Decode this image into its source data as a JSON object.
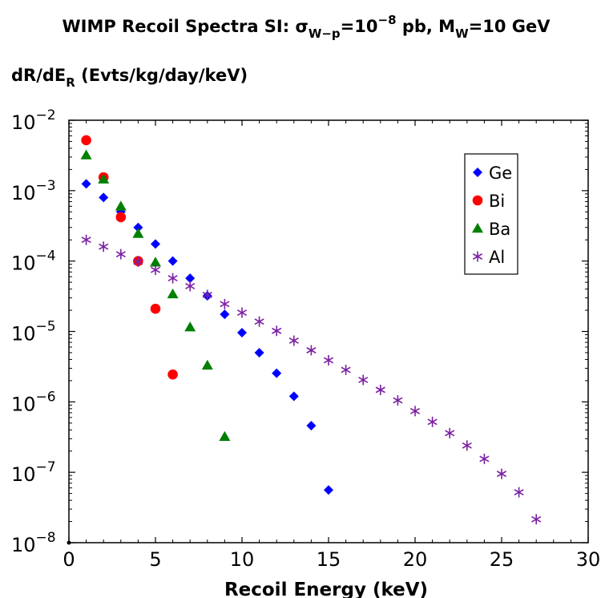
{
  "chart_data": {
    "type": "scatter",
    "title": {
      "prefix": "WIMP Recoil Spectra SI: σ",
      "sigma_sub": "W−p",
      "mid": "=10",
      "exp": "−8",
      "unit": " pb, M",
      "mass_sub": "W",
      "suffix": "=10 GeV"
    },
    "ylabel": {
      "main": "dR/dE",
      "sub": "R",
      "rest": " (Evts/kg/day/keV)"
    },
    "xlabel": "Recoil Energy (keV)",
    "x_scale": "linear",
    "y_scale": "log",
    "xlim": [
      0,
      30
    ],
    "ylim": [
      1e-08,
      0.01
    ],
    "x_ticks": [
      "0",
      "5",
      "10",
      "15",
      "20",
      "25",
      "30"
    ],
    "y_ticks": [
      {
        "base": "10",
        "exp": "−2",
        "value": 0.01
      },
      {
        "base": "10",
        "exp": "−3",
        "value": 0.001
      },
      {
        "base": "10",
        "exp": "−4",
        "value": 0.0001
      },
      {
        "base": "10",
        "exp": "−5",
        "value": 1e-05
      },
      {
        "base": "10",
        "exp": "−6",
        "value": 1e-06
      },
      {
        "base": "10",
        "exp": "−7",
        "value": 1e-07
      },
      {
        "base": "10",
        "exp": "−8",
        "value": 1e-08
      }
    ],
    "grid": false,
    "legend_position": "top-right",
    "series": [
      {
        "name": "Ge",
        "color": "#0000ff",
        "marker": "diamond",
        "x": [
          1,
          2,
          3,
          4,
          5,
          6,
          7,
          8,
          9,
          10,
          11,
          12,
          13,
          14,
          15
        ],
        "y": [
          0.00125,
          0.0008,
          0.0005,
          0.0003,
          0.000175,
          0.0001,
          5.7e-05,
          3.2e-05,
          1.75e-05,
          9.6e-06,
          5e-06,
          2.55e-06,
          1.2e-06,
          4.6e-07,
          5.6e-08
        ]
      },
      {
        "name": "Bi",
        "color": "#ff0000",
        "marker": "circle",
        "x": [
          1,
          2,
          3,
          4,
          5,
          6
        ],
        "y": [
          0.0052,
          0.00155,
          0.00042,
          0.0001,
          2.1e-05,
          2.45e-06
        ]
      },
      {
        "name": "Ba",
        "color": "#008000",
        "marker": "triangle",
        "x": [
          1,
          2,
          3,
          4,
          5,
          6,
          7,
          8,
          9
        ],
        "y": [
          0.0032,
          0.00145,
          0.0006,
          0.000245,
          9.6e-05,
          3.4e-05,
          1.15e-05,
          3.3e-06,
          3.2e-07
        ]
      },
      {
        "name": "Al",
        "color": "#7b1fa2",
        "marker": "asterisk",
        "x": [
          1,
          2,
          3,
          4,
          5,
          6,
          7,
          8,
          9,
          10,
          11,
          12,
          13,
          14,
          15,
          16,
          17,
          18,
          19,
          20,
          21,
          22,
          23,
          24,
          25,
          26,
          27
        ],
        "y": [
          0.0002,
          0.00016,
          0.000125,
          9.8e-05,
          7.5e-05,
          5.7e-05,
          4.4e-05,
          3.3e-05,
          2.45e-05,
          1.85e-05,
          1.38e-05,
          1.02e-05,
          7.4e-06,
          5.4e-06,
          3.9e-06,
          2.85e-06,
          2.05e-06,
          1.48e-06,
          1.05e-06,
          7.4e-07,
          5.2e-07,
          3.6e-07,
          2.4e-07,
          1.55e-07,
          9.5e-08,
          5.2e-08,
          2.15e-08
        ]
      }
    ]
  }
}
